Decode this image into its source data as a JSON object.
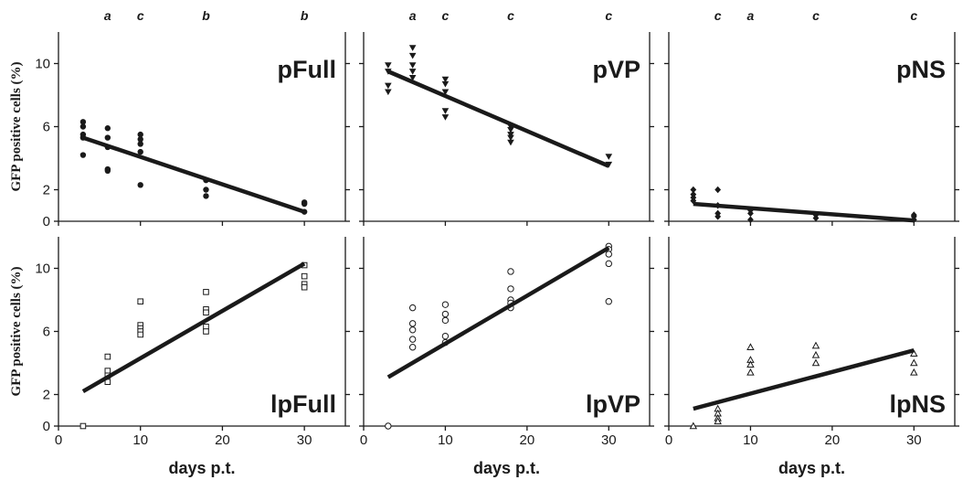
{
  "chart_data": [
    {
      "panel": "pFull",
      "type": "scatter",
      "title": "pFull",
      "marker": "filled-circle",
      "xlabel": "",
      "ylabel": "GFP positive cells (%)",
      "xlim": [
        0,
        35
      ],
      "ylim": [
        0,
        12
      ],
      "xticks": [],
      "yticks": [
        0,
        2,
        6,
        10
      ],
      "letters": [
        {
          "x": 6,
          "text": "a"
        },
        {
          "x": 10,
          "text": "c"
        },
        {
          "x": 18,
          "text": "b"
        },
        {
          "x": 30,
          "text": "b"
        }
      ],
      "points": [
        [
          3,
          6.3
        ],
        [
          3,
          6.0
        ],
        [
          3,
          5.5
        ],
        [
          3,
          5.3
        ],
        [
          3,
          4.2
        ],
        [
          6,
          5.9
        ],
        [
          6,
          5.3
        ],
        [
          6,
          4.7
        ],
        [
          6,
          3.3
        ],
        [
          6,
          3.2
        ],
        [
          10,
          5.5
        ],
        [
          10,
          5.2
        ],
        [
          10,
          4.9
        ],
        [
          10,
          4.4
        ],
        [
          10,
          2.3
        ],
        [
          18,
          2.6
        ],
        [
          18,
          2.0
        ],
        [
          18,
          1.6
        ],
        [
          30,
          1.2
        ],
        [
          30,
          1.1
        ],
        [
          30,
          0.6
        ]
      ],
      "trend": [
        [
          3,
          5.3
        ],
        [
          30,
          0.6
        ]
      ]
    },
    {
      "panel": "pVP",
      "type": "scatter",
      "title": "pVP",
      "marker": "filled-triangle-down",
      "xlabel": "",
      "ylabel": "",
      "xlim": [
        0,
        35
      ],
      "ylim": [
        0,
        12
      ],
      "xticks": [],
      "yticks": [
        0,
        2,
        6,
        10
      ],
      "letters": [
        {
          "x": 6,
          "text": "a"
        },
        {
          "x": 10,
          "text": "c"
        },
        {
          "x": 18,
          "text": "c"
        },
        {
          "x": 30,
          "text": "c"
        }
      ],
      "points": [
        [
          3,
          9.9
        ],
        [
          3,
          9.5
        ],
        [
          3,
          8.6
        ],
        [
          3,
          8.2
        ],
        [
          6,
          11.0
        ],
        [
          6,
          10.5
        ],
        [
          6,
          9.9
        ],
        [
          6,
          9.5
        ],
        [
          6,
          9.1
        ],
        [
          10,
          9.0
        ],
        [
          10,
          8.7
        ],
        [
          10,
          8.2
        ],
        [
          10,
          7.0
        ],
        [
          10,
          6.6
        ],
        [
          18,
          6.0
        ],
        [
          18,
          5.8
        ],
        [
          18,
          5.5
        ],
        [
          18,
          5.3
        ],
        [
          18,
          5.0
        ],
        [
          30,
          4.1
        ],
        [
          30,
          3.6
        ]
      ],
      "trend": [
        [
          3,
          9.5
        ],
        [
          30,
          3.5
        ]
      ]
    },
    {
      "panel": "pNS",
      "type": "scatter",
      "title": "pNS",
      "marker": "filled-diamond",
      "xlabel": "",
      "ylabel": "",
      "xlim": [
        0,
        35
      ],
      "ylim": [
        0,
        12
      ],
      "xticks": [],
      "yticks": [
        0,
        2,
        6,
        10
      ],
      "letters": [
        {
          "x": 6,
          "text": "c"
        },
        {
          "x": 10,
          "text": "a"
        },
        {
          "x": 18,
          "text": "c"
        },
        {
          "x": 30,
          "text": "c"
        }
      ],
      "points": [
        [
          3,
          2.0
        ],
        [
          3,
          1.7
        ],
        [
          3,
          1.5
        ],
        [
          3,
          1.3
        ],
        [
          6,
          2.0
        ],
        [
          6,
          1.0
        ],
        [
          6,
          0.5
        ],
        [
          6,
          0.3
        ],
        [
          10,
          0.7
        ],
        [
          10,
          0.5
        ],
        [
          10,
          0.1
        ],
        [
          18,
          0.4
        ],
        [
          18,
          0.2
        ],
        [
          30,
          0.4
        ],
        [
          30,
          0.3
        ],
        [
          30,
          0.1
        ]
      ],
      "trend": [
        [
          3,
          1.1
        ],
        [
          30,
          0.05
        ]
      ]
    },
    {
      "panel": "lpFull",
      "type": "scatter",
      "title": "lpFull",
      "marker": "open-square",
      "xlabel": "days p.t.",
      "ylabel": "GFP positive cells (%)",
      "xlim": [
        0,
        35
      ],
      "ylim": [
        0,
        12
      ],
      "xticks": [
        0,
        10,
        20,
        30
      ],
      "yticks": [
        0,
        2,
        6,
        10
      ],
      "letters": [],
      "points": [
        [
          3,
          0.0
        ],
        [
          6,
          4.4
        ],
        [
          6,
          3.5
        ],
        [
          6,
          3.2
        ],
        [
          6,
          2.8
        ],
        [
          10,
          7.9
        ],
        [
          10,
          6.4
        ],
        [
          10,
          6.2
        ],
        [
          10,
          6.0
        ],
        [
          10,
          5.8
        ],
        [
          18,
          8.5
        ],
        [
          18,
          7.4
        ],
        [
          18,
          7.2
        ],
        [
          18,
          6.3
        ],
        [
          18,
          6.0
        ],
        [
          30,
          10.2
        ],
        [
          30,
          9.5
        ],
        [
          30,
          9.0
        ],
        [
          30,
          8.8
        ]
      ],
      "trend": [
        [
          3,
          2.2
        ],
        [
          30,
          10.3
        ]
      ]
    },
    {
      "panel": "lpVP",
      "type": "scatter",
      "title": "lpVP",
      "marker": "open-circle",
      "xlabel": "days p.t.",
      "ylabel": "",
      "xlim": [
        0,
        35
      ],
      "ylim": [
        0,
        12
      ],
      "xticks": [
        0,
        10,
        20,
        30
      ],
      "yticks": [
        0,
        2,
        6,
        10
      ],
      "letters": [],
      "points": [
        [
          3,
          0.0
        ],
        [
          6,
          7.5
        ],
        [
          6,
          6.5
        ],
        [
          6,
          6.1
        ],
        [
          6,
          5.5
        ],
        [
          6,
          5.0
        ],
        [
          10,
          7.7
        ],
        [
          10,
          7.1
        ],
        [
          10,
          6.7
        ],
        [
          10,
          5.7
        ],
        [
          10,
          5.3
        ],
        [
          18,
          9.8
        ],
        [
          18,
          8.7
        ],
        [
          18,
          8.0
        ],
        [
          18,
          7.8
        ],
        [
          18,
          7.5
        ],
        [
          30,
          11.4
        ],
        [
          30,
          11.2
        ],
        [
          30,
          10.9
        ],
        [
          30,
          10.3
        ],
        [
          30,
          7.9
        ]
      ],
      "trend": [
        [
          3,
          3.1
        ],
        [
          30,
          11.3
        ]
      ]
    },
    {
      "panel": "lpNS",
      "type": "scatter",
      "title": "lpNS",
      "marker": "open-triangle",
      "xlabel": "days p.t.",
      "ylabel": "",
      "xlim": [
        0,
        35
      ],
      "ylim": [
        0,
        12
      ],
      "xticks": [
        0,
        10,
        20,
        30
      ],
      "yticks": [
        0,
        2,
        6,
        10
      ],
      "letters": [],
      "points": [
        [
          3,
          0.0
        ],
        [
          6,
          1.1
        ],
        [
          6,
          0.8
        ],
        [
          6,
          0.5
        ],
        [
          6,
          0.3
        ],
        [
          10,
          5.0
        ],
        [
          10,
          4.2
        ],
        [
          10,
          3.9
        ],
        [
          10,
          3.4
        ],
        [
          18,
          5.1
        ],
        [
          18,
          4.5
        ],
        [
          18,
          4.0
        ],
        [
          30,
          4.6
        ],
        [
          30,
          4.0
        ],
        [
          30,
          3.4
        ]
      ],
      "trend": [
        [
          3,
          1.1
        ],
        [
          30,
          4.8
        ]
      ]
    }
  ]
}
